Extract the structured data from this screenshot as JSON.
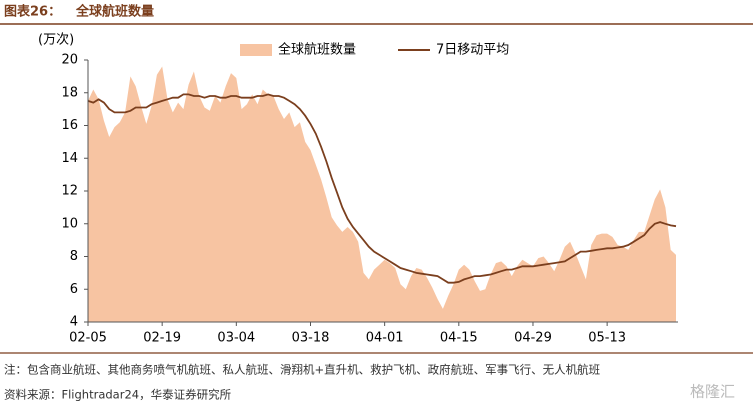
{
  "figure_label": "图表26：",
  "chart_data": {
    "type": "area-line",
    "title": "全球航班数量",
    "y_label": "(万次)",
    "categories": [
      "02-05",
      null,
      null,
      null,
      null,
      null,
      null,
      null,
      null,
      null,
      null,
      null,
      null,
      null,
      "02-19",
      null,
      null,
      null,
      null,
      null,
      null,
      null,
      null,
      null,
      null,
      null,
      null,
      null,
      "03-04",
      null,
      null,
      null,
      null,
      null,
      null,
      null,
      null,
      null,
      null,
      null,
      null,
      null,
      "03-18",
      null,
      null,
      null,
      null,
      null,
      null,
      null,
      null,
      null,
      null,
      null,
      null,
      null,
      "04-01",
      null,
      null,
      null,
      null,
      null,
      null,
      null,
      null,
      null,
      null,
      null,
      null,
      null,
      "04-15",
      null,
      null,
      null,
      null,
      null,
      null,
      null,
      null,
      null,
      null,
      null,
      null,
      null,
      "04-29",
      null,
      null,
      null,
      null,
      null,
      null,
      null,
      null,
      null,
      null,
      null,
      null,
      null,
      "05-13",
      null,
      null,
      null,
      null,
      null,
      null,
      null,
      null,
      null,
      null,
      null,
      null,
      null
    ],
    "series": [
      {
        "name": "全球航班数量",
        "kind": "area",
        "color": "#f7c4a2",
        "values": [
          17.5,
          18.2,
          17.6,
          16.3,
          15.3,
          15.9,
          16.2,
          16.8,
          19.0,
          18.4,
          17.2,
          16.1,
          17.2,
          19.1,
          19.6,
          17.6,
          16.8,
          17.4,
          17.0,
          18.5,
          19.3,
          17.8,
          17.1,
          16.9,
          17.8,
          17.4,
          18.4,
          19.2,
          18.9,
          17.0,
          17.3,
          17.9,
          17.3,
          18.2,
          17.9,
          17.8,
          17.0,
          16.4,
          16.8,
          15.9,
          16.2,
          15.0,
          14.5,
          13.6,
          12.7,
          11.6,
          10.4,
          9.9,
          9.5,
          9.8,
          9.5,
          8.9,
          7.0,
          6.6,
          7.2,
          7.5,
          7.8,
          7.6,
          7.3,
          6.3,
          6.0,
          6.8,
          7.3,
          7.2,
          6.7,
          6.1,
          5.4,
          4.8,
          5.6,
          6.3,
          7.2,
          7.5,
          7.2,
          6.5,
          5.9,
          6.0,
          6.9,
          7.6,
          7.7,
          7.4,
          6.8,
          7.4,
          7.8,
          7.6,
          7.4,
          7.9,
          8.0,
          7.6,
          7.1,
          7.8,
          8.6,
          8.9,
          8.2,
          7.4,
          6.6,
          8.7,
          9.3,
          9.4,
          9.4,
          9.2,
          8.7,
          8.6,
          8.4,
          9.0,
          9.5,
          9.5,
          10.5,
          11.5,
          12.1,
          11.0,
          8.4,
          8.1
        ]
      },
      {
        "name": "7日移动平均",
        "kind": "line",
        "color": "#7b3f1e",
        "values": [
          17.5,
          17.4,
          17.6,
          17.4,
          17.0,
          16.8,
          16.8,
          16.8,
          16.9,
          17.1,
          17.1,
          17.1,
          17.3,
          17.4,
          17.5,
          17.6,
          17.7,
          17.7,
          17.9,
          17.9,
          17.8,
          17.8,
          17.7,
          17.8,
          17.8,
          17.7,
          17.7,
          17.8,
          17.8,
          17.7,
          17.7,
          17.7,
          17.8,
          17.8,
          17.9,
          17.8,
          17.8,
          17.7,
          17.5,
          17.3,
          17.0,
          16.6,
          16.1,
          15.5,
          14.7,
          13.8,
          12.8,
          11.9,
          11.0,
          10.3,
          9.8,
          9.4,
          9.0,
          8.6,
          8.3,
          8.1,
          7.9,
          7.7,
          7.5,
          7.3,
          7.2,
          7.1,
          7.0,
          6.95,
          6.9,
          6.85,
          6.8,
          6.6,
          6.4,
          6.4,
          6.45,
          6.6,
          6.7,
          6.8,
          6.8,
          6.85,
          6.9,
          7.0,
          7.1,
          7.2,
          7.2,
          7.3,
          7.4,
          7.4,
          7.4,
          7.45,
          7.5,
          7.55,
          7.6,
          7.65,
          7.7,
          7.9,
          8.1,
          8.3,
          8.3,
          8.35,
          8.4,
          8.45,
          8.5,
          8.5,
          8.55,
          8.6,
          8.7,
          8.9,
          9.1,
          9.3,
          9.7,
          10.0,
          10.1,
          10.0,
          9.9,
          9.85
        ]
      }
    ],
    "ylim": [
      4,
      20
    ],
    "yticks": [
      4,
      6,
      8,
      10,
      12,
      14,
      16,
      18,
      20
    ],
    "grid": false
  },
  "note": "注：包含商业航班、其他商务喷气机航班、私人航班、滑翔机+直升机、救护飞机、政府航班、军事飞行、无人机航班",
  "source": "资料来源：Flightradar24，华泰证券研究所",
  "watermark": "格隆汇"
}
